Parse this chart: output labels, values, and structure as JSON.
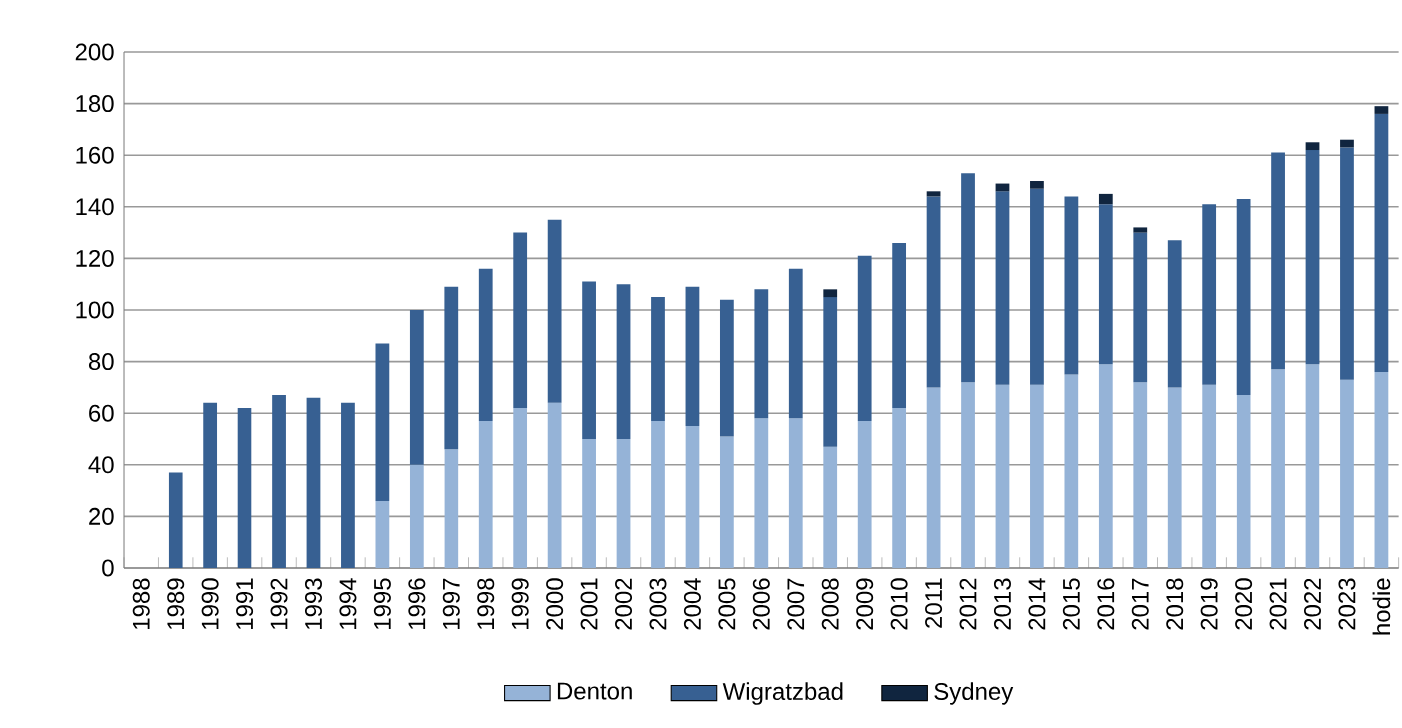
{
  "chart_data": {
    "type": "bar",
    "stacked": true,
    "categories": [
      "1988",
      "1989",
      "1990",
      "1991",
      "1992",
      "1993",
      "1994",
      "1995",
      "1996",
      "1997",
      "1998",
      "1999",
      "2000",
      "2001",
      "2002",
      "2003",
      "2004",
      "2005",
      "2006",
      "2007",
      "2008",
      "2009",
      "2010",
      "2011",
      "2012",
      "2013",
      "2014",
      "2015",
      "2016",
      "2017",
      "2018",
      "2019",
      "2020",
      "2021",
      "2022",
      "2023",
      "hodie"
    ],
    "series": [
      {
        "name": "Denton",
        "color": "#95b3d7",
        "values": [
          null,
          null,
          null,
          null,
          null,
          null,
          null,
          26,
          40,
          46,
          57,
          62,
          64,
          50,
          50,
          57,
          55,
          51,
          58,
          58,
          47,
          57,
          62,
          70,
          72,
          71,
          71,
          75,
          79,
          72,
          70,
          71,
          67,
          77,
          79,
          73,
          76
        ]
      },
      {
        "name": "Wigratzbad",
        "color": "#376092",
        "values": [
          null,
          37,
          64,
          62,
          67,
          66,
          64,
          61,
          60,
          63,
          59,
          68,
          71,
          61,
          60,
          48,
          54,
          53,
          50,
          58,
          58,
          64,
          64,
          74,
          81,
          75,
          76,
          69,
          62,
          58,
          57,
          70,
          76,
          84,
          83,
          90,
          100
        ]
      },
      {
        "name": "Sydney",
        "color": "#10253f",
        "values": [
          null,
          null,
          null,
          null,
          null,
          null,
          null,
          null,
          null,
          null,
          null,
          null,
          null,
          null,
          null,
          null,
          null,
          null,
          null,
          null,
          3,
          null,
          null,
          2,
          null,
          3,
          3,
          null,
          4,
          2,
          null,
          null,
          null,
          null,
          3,
          3,
          3
        ]
      }
    ],
    "ylim": [
      0,
      200
    ],
    "yticks": [
      0,
      20,
      40,
      60,
      80,
      100,
      120,
      140,
      160,
      180,
      200
    ],
    "grid": "y",
    "legend": "bottom"
  }
}
